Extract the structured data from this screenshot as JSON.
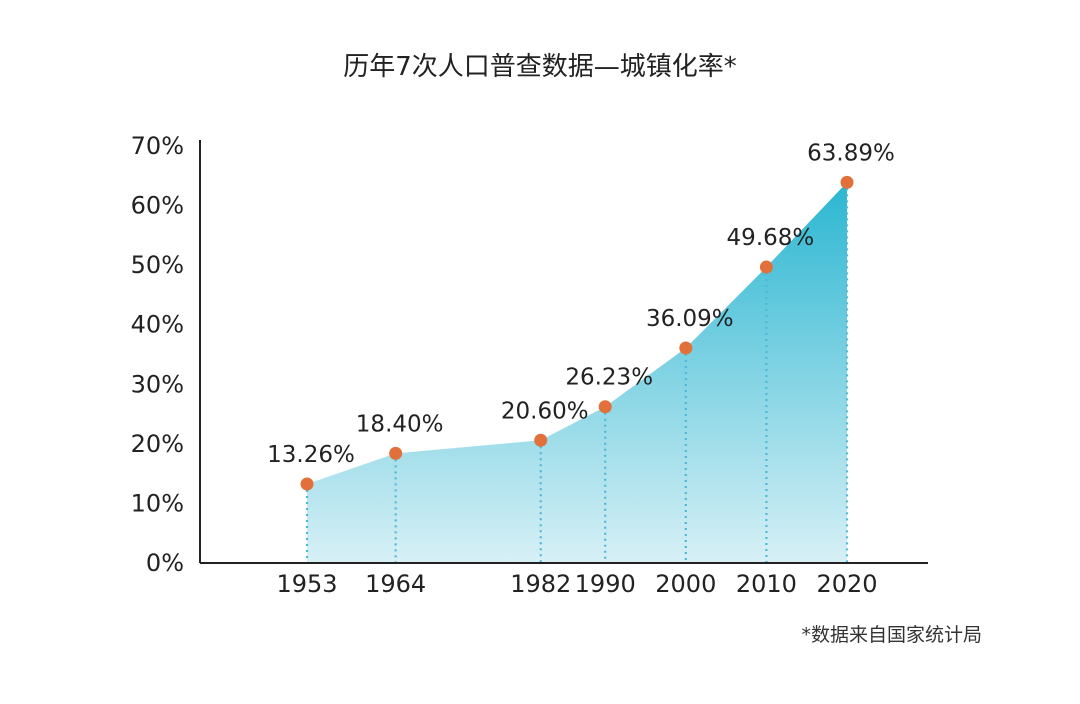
{
  "chart_data": {
    "type": "area",
    "title": "历年7次人口普查数据—城镇化率*",
    "xlabel": "",
    "ylabel": "",
    "categories": [
      "1953",
      "1964",
      "1982",
      "1990",
      "2000",
      "2010",
      "2020"
    ],
    "x": [
      1953,
      1964,
      1982,
      1990,
      2000,
      2010,
      2020
    ],
    "values": [
      13.26,
      18.4,
      20.6,
      26.23,
      36.09,
      49.68,
      63.89
    ],
    "value_labels": [
      "13.26%",
      "18.40%",
      "20.60%",
      "26.23%",
      "36.09%",
      "49.68%",
      "63.89%"
    ],
    "ylim": [
      0,
      70
    ],
    "yticks": [
      0,
      10,
      20,
      30,
      40,
      50,
      60,
      70
    ],
    "ytick_labels": [
      "0%",
      "10%",
      "20%",
      "30%",
      "40%",
      "50%",
      "60%",
      "70%"
    ],
    "grid": false,
    "legend": "none",
    "note": "*数据来自国家统计局",
    "colors": {
      "area_top": "#2bb6d1",
      "area_bottom": "#d7f0f6",
      "marker": "#e2703a",
      "dotted_line": "#4fb8d6",
      "axis": "#222222"
    }
  }
}
